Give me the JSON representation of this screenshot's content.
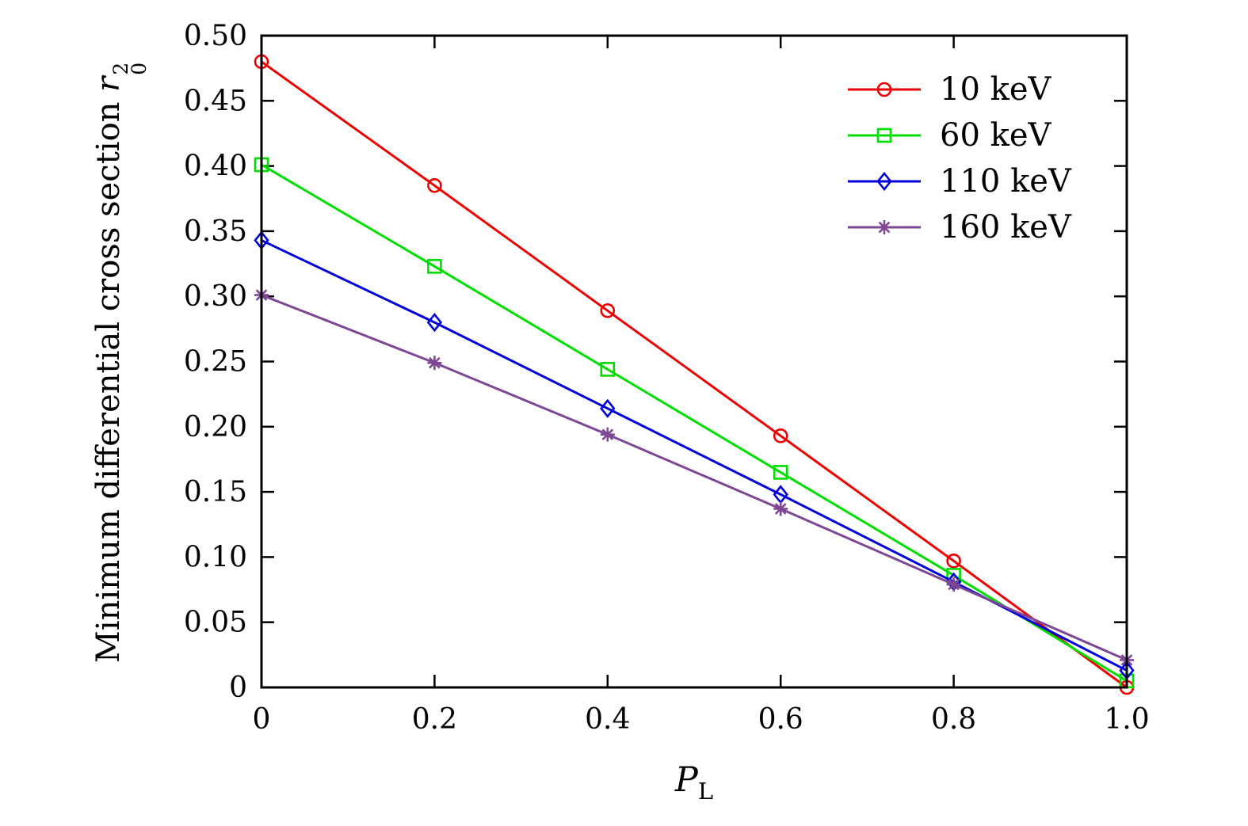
{
  "chart_data": {
    "type": "line",
    "title": "",
    "xlabel_var": "P",
    "xlabel_sub": "L",
    "ylabel_text": "Minimum differential cross section ",
    "ylabel_var": "r",
    "ylabel_sup": "2",
    "ylabel_sub": "0",
    "xlim": [
      0,
      1.0
    ],
    "ylim": [
      0,
      0.5
    ],
    "grid": false,
    "legend_position": "top-right",
    "x": [
      0,
      0.2,
      0.4,
      0.6,
      0.8,
      1.0
    ],
    "xtick_values": [
      0,
      0.2,
      0.4,
      0.6,
      0.8,
      1.0
    ],
    "xtick_labels": [
      "0",
      "0.2",
      "0.4",
      "0.6",
      "0.8",
      "1.0"
    ],
    "ytick_values": [
      0,
      0.05,
      0.1,
      0.15,
      0.2,
      0.25,
      0.3,
      0.35,
      0.4,
      0.45,
      0.5
    ],
    "ytick_labels": [
      "0",
      "0.05",
      "0.10",
      "0.15",
      "0.20",
      "0.25",
      "0.30",
      "0.35",
      "0.40",
      "0.45",
      "0.50"
    ],
    "axis_color": "#000000",
    "series": [
      {
        "name": "10 keV",
        "color": "#ee0000",
        "marker": "circle",
        "values": [
          0.48,
          0.385,
          0.289,
          0.193,
          0.097,
          0.0
        ]
      },
      {
        "name": "60 keV",
        "color": "#00dd00",
        "marker": "square",
        "values": [
          0.401,
          0.323,
          0.244,
          0.165,
          0.086,
          0.005
        ]
      },
      {
        "name": "110 keV",
        "color": "#0000dd",
        "marker": "diamond",
        "values": [
          0.343,
          0.28,
          0.214,
          0.148,
          0.081,
          0.013
        ]
      },
      {
        "name": "160 keV",
        "color": "#7e4794",
        "marker": "asterisk",
        "values": [
          0.301,
          0.249,
          0.194,
          0.137,
          0.079,
          0.021
        ]
      }
    ]
  }
}
